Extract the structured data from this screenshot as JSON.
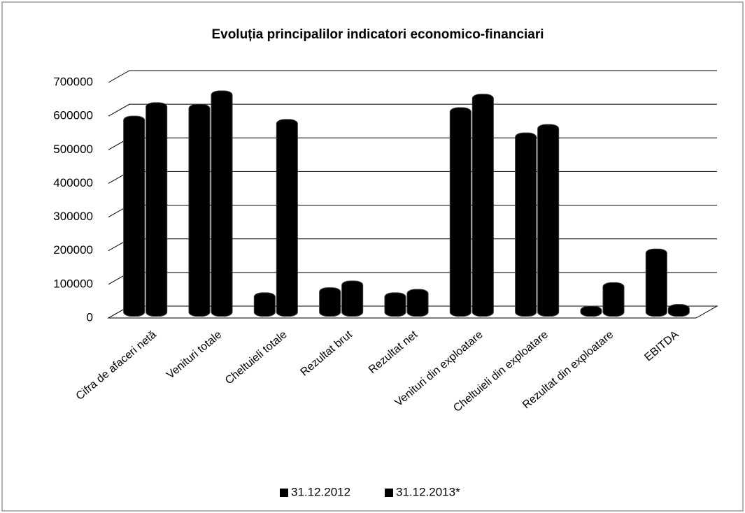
{
  "chart_data": {
    "type": "bar3d",
    "title": "Evoluția principalilor indicatori economico-financiari",
    "categories": [
      "Cifra de afaceri netă",
      "Venituri totale",
      "Cheltuieli totale",
      "Rezultat brut",
      "Rezultat net",
      "Venituri din exploatare",
      "Cheltuieli din exploatare",
      "Rezultat din exploatare",
      "EBITDA"
    ],
    "series": [
      {
        "name": "31.12.2012",
        "color": "#000000",
        "values": [
          570000,
          605000,
          45000,
          60000,
          45000,
          595000,
          520000,
          5000,
          175000
        ]
      },
      {
        "name": "31.12.2013*",
        "color": "#000000",
        "values": [
          610000,
          645000,
          560000,
          80000,
          55000,
          635000,
          545000,
          75000,
          10000
        ]
      }
    ],
    "ylim": [
      0,
      700000
    ],
    "yticks": [
      0,
      100000,
      200000,
      300000,
      400000,
      500000,
      600000,
      700000
    ],
    "grid": true,
    "legend": "bottom"
  }
}
